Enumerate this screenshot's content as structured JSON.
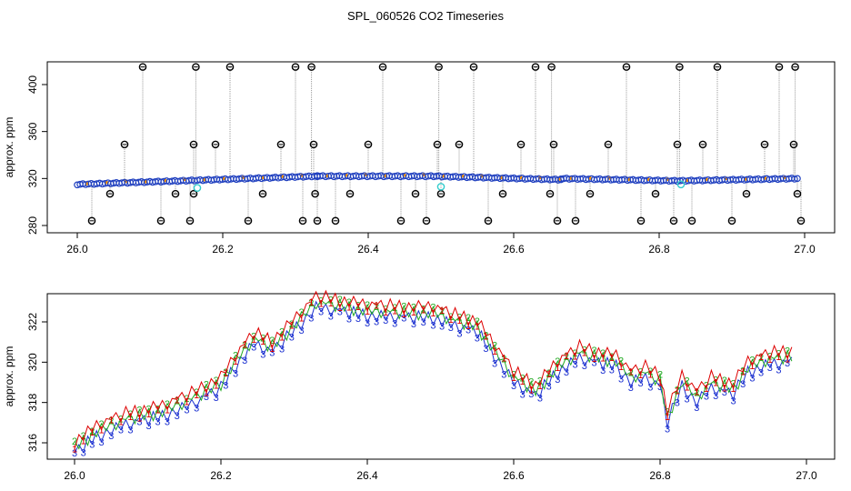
{
  "title": "SPL_060526  CO2 Timeseries",
  "chart_data": [
    {
      "type": "scatter",
      "ylabel": "approx. ppm",
      "xlim": [
        26.0,
        27.0
      ],
      "ylim": [
        280,
        410
      ],
      "xticks": [
        "26.0",
        "26.2",
        "26.4",
        "26.6",
        "26.8",
        "27.0"
      ],
      "xtick_values": [
        26.0,
        26.2,
        26.4,
        26.6,
        26.8,
        27.0
      ],
      "yticks": [
        "280",
        "320",
        "360",
        "400"
      ],
      "ytick_values": [
        280,
        320,
        360,
        400
      ],
      "colors": {
        "main": "#1f3fbf",
        "secondary": "#ff9900",
        "outlier": "#000000",
        "cyan": "#33cccc",
        "line": "#999999"
      },
      "segments": [
        {
          "x0": 26.0,
          "x1": 26.33,
          "y0": 315,
          "y1": 322
        },
        {
          "x0": 26.33,
          "x1": 26.49,
          "y0": 322,
          "y1": 322
        },
        {
          "x0": 26.49,
          "x1": 26.665,
          "y0": 322,
          "y1": 319
        },
        {
          "x0": 26.665,
          "x1": 26.825,
          "y0": 320,
          "y1": 318
        },
        {
          "x0": 26.825,
          "x1": 26.99,
          "y0": 318,
          "y1": 320
        }
      ],
      "outliers": [
        {
          "x": 26.02,
          "y": 284
        },
        {
          "x": 26.045,
          "y": 307
        },
        {
          "x": 26.065,
          "y": 349
        },
        {
          "x": 26.09,
          "y": 415
        },
        {
          "x": 26.115,
          "y": 284
        },
        {
          "x": 26.135,
          "y": 307
        },
        {
          "x": 26.155,
          "y": 284
        },
        {
          "x": 26.16,
          "y": 349
        },
        {
          "x": 26.163,
          "y": 415
        },
        {
          "x": 26.16,
          "y": 307
        },
        {
          "x": 26.19,
          "y": 349
        },
        {
          "x": 26.21,
          "y": 415
        },
        {
          "x": 26.235,
          "y": 284
        },
        {
          "x": 26.255,
          "y": 307
        },
        {
          "x": 26.28,
          "y": 349
        },
        {
          "x": 26.3,
          "y": 415
        },
        {
          "x": 26.31,
          "y": 284
        },
        {
          "x": 26.322,
          "y": 415
        },
        {
          "x": 26.325,
          "y": 349
        },
        {
          "x": 26.327,
          "y": 307
        },
        {
          "x": 26.33,
          "y": 284
        },
        {
          "x": 26.355,
          "y": 284
        },
        {
          "x": 26.375,
          "y": 307
        },
        {
          "x": 26.4,
          "y": 349
        },
        {
          "x": 26.42,
          "y": 415
        },
        {
          "x": 26.445,
          "y": 284
        },
        {
          "x": 26.465,
          "y": 307
        },
        {
          "x": 26.48,
          "y": 284
        },
        {
          "x": 26.495,
          "y": 349
        },
        {
          "x": 26.497,
          "y": 415
        },
        {
          "x": 26.5,
          "y": 307
        },
        {
          "x": 26.525,
          "y": 349
        },
        {
          "x": 26.545,
          "y": 415
        },
        {
          "x": 26.565,
          "y": 284
        },
        {
          "x": 26.585,
          "y": 307
        },
        {
          "x": 26.61,
          "y": 349
        },
        {
          "x": 26.63,
          "y": 415
        },
        {
          "x": 26.65,
          "y": 307
        },
        {
          "x": 26.652,
          "y": 415
        },
        {
          "x": 26.655,
          "y": 349
        },
        {
          "x": 26.66,
          "y": 284
        },
        {
          "x": 26.685,
          "y": 284
        },
        {
          "x": 26.705,
          "y": 307
        },
        {
          "x": 26.73,
          "y": 349
        },
        {
          "x": 26.755,
          "y": 415
        },
        {
          "x": 26.775,
          "y": 284
        },
        {
          "x": 26.795,
          "y": 307
        },
        {
          "x": 26.82,
          "y": 284
        },
        {
          "x": 26.825,
          "y": 349
        },
        {
          "x": 26.828,
          "y": 415
        },
        {
          "x": 26.845,
          "y": 284
        },
        {
          "x": 26.86,
          "y": 349
        },
        {
          "x": 26.88,
          "y": 415
        },
        {
          "x": 26.9,
          "y": 284
        },
        {
          "x": 26.92,
          "y": 307
        },
        {
          "x": 26.945,
          "y": 349
        },
        {
          "x": 26.965,
          "y": 415
        },
        {
          "x": 26.985,
          "y": 349
        },
        {
          "x": 26.987,
          "y": 415
        },
        {
          "x": 26.99,
          "y": 307
        },
        {
          "x": 26.995,
          "y": 284
        }
      ],
      "cyan_points": [
        {
          "x": 26.165,
          "y": 312
        },
        {
          "x": 26.5,
          "y": 313
        },
        {
          "x": 26.83,
          "y": 315
        }
      ]
    },
    {
      "type": "line",
      "ylabel": "approx. ppm",
      "xlim": [
        26.0,
        27.0
      ],
      "ylim": [
        315,
        323.5
      ],
      "xticks": [
        "26.0",
        "26.2",
        "26.4",
        "26.6",
        "26.8",
        "27.0"
      ],
      "xtick_values": [
        26.0,
        26.2,
        26.4,
        26.6,
        26.8,
        27.0
      ],
      "yticks": [
        "316",
        "318",
        "320",
        "322"
      ],
      "ytick_values": [
        316,
        318,
        320,
        322
      ],
      "series": [
        {
          "symbol": "1",
          "color": "#dd0000",
          "offset": 0.55
        },
        {
          "symbol": "2",
          "color": "#22aa22",
          "offset": 0.25
        },
        {
          "symbol": "3",
          "color": "#1a2fd0",
          "offset": 0.0
        }
      ],
      "x": [
        26.0,
        26.03,
        26.07,
        26.12,
        26.16,
        26.18,
        26.2,
        26.22,
        26.245,
        26.27,
        26.29,
        26.33,
        26.35,
        26.4,
        26.45,
        26.49,
        26.52,
        26.55,
        26.58,
        26.6,
        26.63,
        26.66,
        26.69,
        26.71,
        26.74,
        26.76,
        26.78,
        26.8,
        26.81,
        26.83,
        26.85,
        26.87,
        26.9,
        26.92,
        26.95,
        26.98
      ],
      "y": [
        315.5,
        316.3,
        316.9,
        317.3,
        317.9,
        318.3,
        318.7,
        319.8,
        320.9,
        320.5,
        321.2,
        322.7,
        322.6,
        322.3,
        322.2,
        322.2,
        321.8,
        321.5,
        320.0,
        319.0,
        318.3,
        319.5,
        320.2,
        320.0,
        319.8,
        319.0,
        319.2,
        318.8,
        317.0,
        318.8,
        318.0,
        318.7,
        318.4,
        319.5,
        319.9,
        320.0
      ],
      "wiggle": [
        0,
        0.25,
        -0.3,
        0.35,
        -0.2,
        0.3,
        -0.35,
        0.2,
        -0.25,
        0.3,
        -0.15,
        0.25,
        -0.3,
        0.15
      ]
    }
  ]
}
